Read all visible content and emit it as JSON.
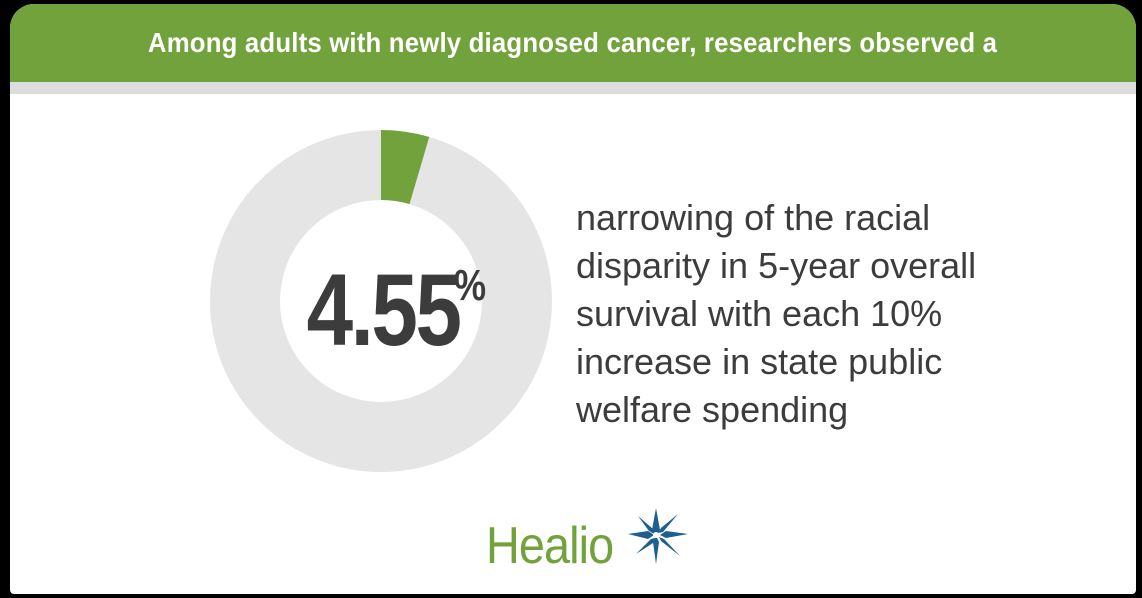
{
  "banner": {
    "text": "Among adults with newly diagnosed cancer, researchers observed a"
  },
  "stat": {
    "value": "4.55",
    "unit": "%",
    "percent": 4.55
  },
  "description": {
    "lines": [
      "narrowing of the racial",
      "disparity in 5-year overall",
      "survival with each 10%",
      "increase in state public",
      "welfare spending"
    ]
  },
  "logo": {
    "text": "Healio"
  },
  "colors": {
    "accent": "#71a23b",
    "ring_track": "#e5e5e5",
    "text": "#3c3c3c",
    "star": "#1d5f8f"
  },
  "icons": {
    "logo_mark": "star-burst-icon"
  }
}
